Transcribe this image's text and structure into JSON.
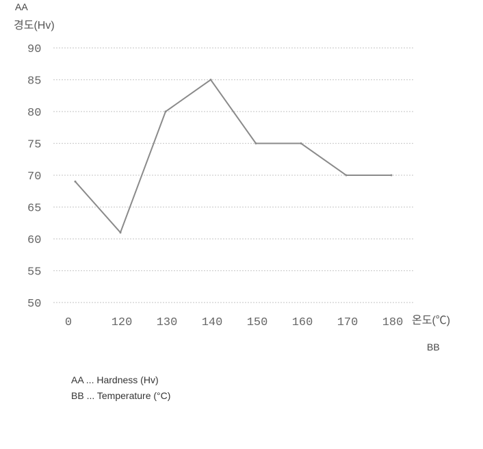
{
  "chart_data": {
    "type": "line",
    "y_axis_code": "AA",
    "y_axis_unit": "경도(Hv)",
    "x_axis_code": "BB",
    "x_axis_unit": "온도(℃)",
    "yticks": [
      "90",
      "85",
      "80",
      "75",
      "70",
      "65",
      "60",
      "55",
      "50"
    ],
    "ylim": [
      50,
      90
    ],
    "categories": [
      "0",
      "120",
      "130",
      "140",
      "150",
      "160",
      "170",
      "180"
    ],
    "values": [
      69,
      61,
      80,
      85,
      75,
      75,
      70,
      70
    ],
    "grid": true,
    "legend": [
      {
        "code": "AA",
        "text": "Hardness (Hv)"
      },
      {
        "code": "BB",
        "text": "Temperature (°C)"
      }
    ],
    "legend_separator": "..."
  }
}
